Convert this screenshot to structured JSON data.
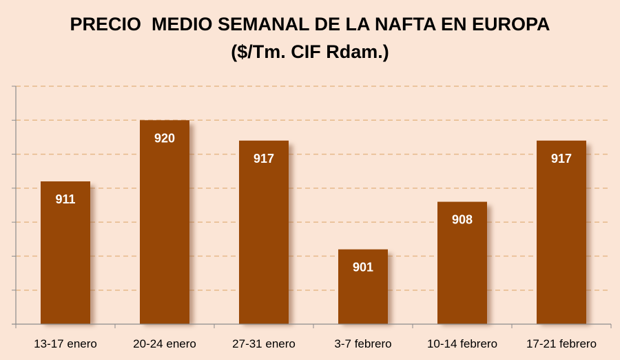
{
  "chart_data": {
    "type": "bar",
    "title": "PRECIO  MEDIO SEMANAL DE LA NAFTA EN EUROPA",
    "subtitle": "($/Tm. CIF Rdam.)",
    "categories": [
      "13-17 enero",
      "20-24 enero",
      "27-31 enero",
      "3-7 febrero",
      "10-14 febrero",
      "17-21 febrero"
    ],
    "values": [
      911,
      920,
      917,
      901,
      908,
      917
    ],
    "ylim": [
      890,
      925
    ],
    "ytick_step": 5,
    "xlabel": "",
    "ylabel": "",
    "grid": true,
    "colors": {
      "bar": "#974706",
      "shadow": "#8b5a3c",
      "grid": "#e6b98a",
      "axis": "#8c8c8c",
      "background": "#fbe5d6"
    }
  }
}
